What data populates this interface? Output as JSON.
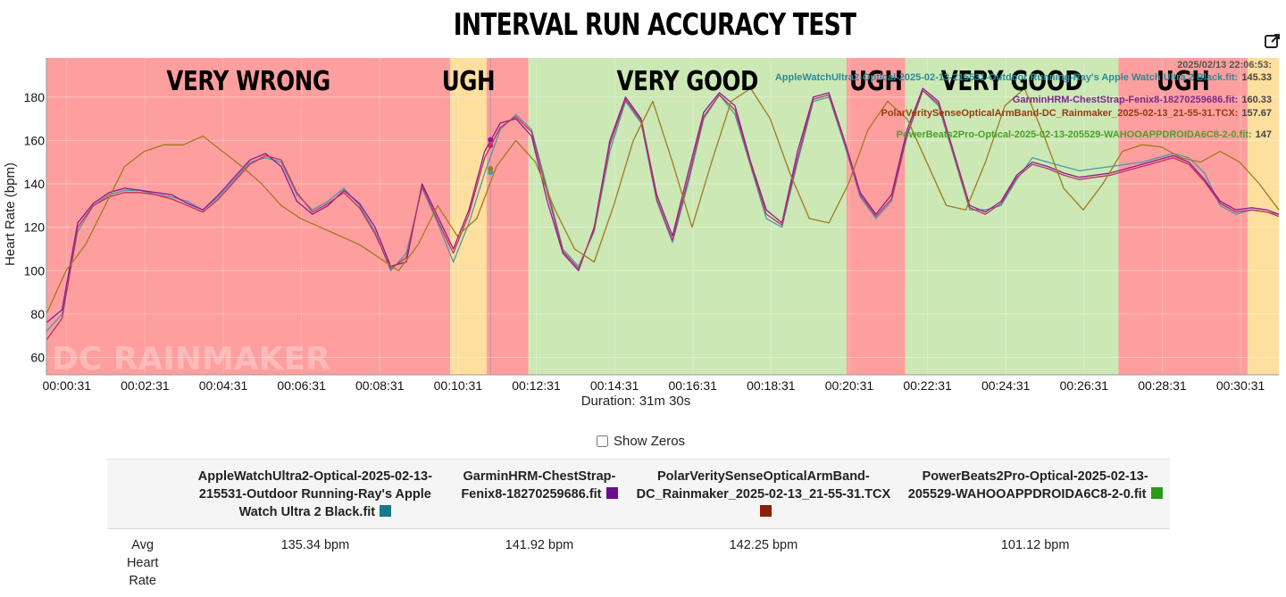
{
  "page": {
    "title": "INTERVAL RUN ACCURACY TEST",
    "show_zeros_label": "Show Zeros",
    "show_zeros_checked": false,
    "watermark": "DC RAINMAKER"
  },
  "tooltip": {
    "timestamp": "2025/02/13 22:06:53:",
    "rows": [
      {
        "text": "AppleWatchUltra2-Optical-2025-02-13-215531-Outdoor Running-Ray's Apple Watch Ultra 2 Black.fit:",
        "value": "145.33",
        "color": "#2a8a9a"
      },
      {
        "text": "GarminHRM-ChestStrap-Fenix8-18270259686.fit:",
        "value": "160.33",
        "color": "#7a2a8a"
      },
      {
        "text": "PolarVeritySenseOpticalArmBand-DC_Rainmaker_2025-02-13_21-55-31.TCX:",
        "value": "157.67",
        "color": "#9a3a10"
      },
      {
        "text": "PowerBeats2Pro-Optical-2025-02-13-205529-WAHOOAPPDROIDA6C8-2-0.fit:",
        "value": "147",
        "color": "#4aa02a"
      }
    ]
  },
  "table": {
    "row_label": "Avg Heart Rate",
    "columns": [
      {
        "name": "AppleWatchUltra2-Optical-2025-02-13-215531-Outdoor Running-Ray's Apple Watch Ultra 2 Black.fit",
        "color": "#137a8c",
        "avg": "135.34 bpm"
      },
      {
        "name": "GarminHRM-ChestStrap-Fenix8-18270259686.fit",
        "color": "#6b0d8c",
        "avg": "141.92 bpm"
      },
      {
        "name": "PolarVeritySenseOpticalArmBand-DC_Rainmaker_2025-02-13_21-55-31.TCX",
        "color": "#8a1f0a",
        "avg": "142.25 bpm"
      },
      {
        "name": "PowerBeats2Pro-Optical-2025-02-13-205529-WAHOOAPPDROIDA6C8-2-0.fit",
        "color": "#2a9a1a",
        "avg": "101.12 bpm"
      }
    ]
  },
  "chart_data": {
    "type": "line",
    "title": "INTERVAL RUN ACCURACY TEST",
    "xlabel": "Duration: 31m 30s",
    "ylabel": "Heart Rate (bpm)",
    "x_unit": "minutes",
    "xlim": [
      0,
      31.5
    ],
    "ylim": [
      52,
      198
    ],
    "x_ticks": [
      "00:00:31",
      "00:02:31",
      "00:04:31",
      "00:06:31",
      "00:08:31",
      "00:10:31",
      "00:12:31",
      "00:14:31",
      "00:16:31",
      "00:18:31",
      "00:20:31",
      "00:22:31",
      "00:24:31",
      "00:26:31",
      "00:28:31",
      "00:30:31"
    ],
    "x_tick_values": [
      0.52,
      2.52,
      4.52,
      6.52,
      8.52,
      10.52,
      12.52,
      14.52,
      16.52,
      18.52,
      20.52,
      22.52,
      24.52,
      26.52,
      28.52,
      30.52
    ],
    "y_ticks": [
      60,
      80,
      100,
      120,
      140,
      160,
      180
    ],
    "grid": true,
    "zones": [
      {
        "label": "VERY WRONG",
        "start": 0.0,
        "end": 10.32,
        "color": "#ff9e9e"
      },
      {
        "label": "UGH",
        "start": 10.32,
        "end": 11.25,
        "color": "#ffdf9e"
      },
      {
        "label": "",
        "start": 11.25,
        "end": 12.32,
        "color": "#ff9e9e"
      },
      {
        "label": "VERY GOOD",
        "start": 12.32,
        "end": 20.45,
        "color": "#cce8b5"
      },
      {
        "label": "UGH",
        "start": 20.45,
        "end": 21.95,
        "color": "#ff9e9e"
      },
      {
        "label": "VERY GOOD",
        "start": 21.95,
        "end": 27.4,
        "color": "#cce8b5"
      },
      {
        "label": "UGH",
        "start": 27.4,
        "end": 30.7,
        "color": "#ff9e9e"
      },
      {
        "label": "",
        "start": 30.7,
        "end": 31.5,
        "color": "#ffdf9e"
      }
    ],
    "crosshair_x": 11.35,
    "series": [
      {
        "name": "AppleWatchUltra2-Optical-2025-02-13-215531-Outdoor Running-Ray's Apple Watch Ultra 2 Black.fit",
        "color": "#4a9aa5",
        "x": [
          0,
          0.4,
          0.8,
          1.2,
          1.6,
          2.0,
          2.4,
          2.8,
          3.2,
          3.6,
          4.0,
          4.4,
          4.8,
          5.2,
          5.6,
          6.0,
          6.4,
          6.8,
          7.2,
          7.6,
          8.0,
          8.4,
          8.8,
          9.2,
          9.6,
          10.0,
          10.4,
          10.8,
          11.2,
          11.6,
          12.0,
          12.4,
          12.8,
          13.2,
          13.6,
          14.0,
          14.4,
          14.8,
          15.2,
          15.6,
          16.0,
          16.4,
          16.8,
          17.2,
          17.6,
          18.0,
          18.4,
          18.8,
          19.2,
          19.6,
          20.0,
          20.4,
          20.8,
          21.2,
          21.6,
          22.0,
          22.4,
          22.8,
          23.2,
          23.6,
          24.0,
          24.4,
          24.8,
          25.2,
          25.6,
          26.0,
          26.4,
          26.8,
          27.2,
          27.6,
          28.0,
          28.4,
          28.8,
          29.2,
          29.6,
          30.0,
          30.4,
          30.8,
          31.2,
          31.5
        ],
        "y": [
          72,
          80,
          118,
          130,
          135,
          137,
          137,
          135,
          134,
          132,
          128,
          134,
          142,
          150,
          152,
          150,
          135,
          128,
          132,
          138,
          130,
          118,
          100,
          108,
          138,
          122,
          104,
          122,
          145,
          165,
          172,
          165,
          138,
          110,
          102,
          118,
          155,
          178,
          168,
          132,
          113,
          140,
          170,
          181,
          172,
          148,
          124,
          120,
          150,
          178,
          180,
          158,
          134,
          124,
          132,
          162,
          183,
          176,
          152,
          128,
          128,
          130,
          142,
          152,
          150,
          148,
          146,
          147,
          148,
          149,
          150,
          152,
          154,
          152,
          145,
          130,
          126,
          128,
          127,
          126
        ]
      },
      {
        "name": "GarminHRM-ChestStrap-Fenix8-18270259686.fit",
        "color": "#8a1a9a",
        "x": [
          0,
          0.4,
          0.8,
          1.2,
          1.6,
          2.0,
          2.4,
          2.8,
          3.2,
          3.6,
          4.0,
          4.4,
          4.8,
          5.2,
          5.6,
          6.0,
          6.4,
          6.8,
          7.2,
          7.6,
          8.0,
          8.4,
          8.8,
          9.2,
          9.6,
          10.0,
          10.4,
          10.8,
          11.2,
          11.6,
          12.0,
          12.4,
          12.8,
          13.2,
          13.6,
          14.0,
          14.4,
          14.8,
          15.2,
          15.6,
          16.0,
          16.4,
          16.8,
          17.2,
          17.6,
          18.0,
          18.4,
          18.8,
          19.2,
          19.6,
          20.0,
          20.4,
          20.8,
          21.2,
          21.6,
          22.0,
          22.4,
          22.8,
          23.2,
          23.6,
          24.0,
          24.4,
          24.8,
          25.2,
          25.6,
          26.0,
          26.4,
          26.8,
          27.2,
          27.6,
          28.0,
          28.4,
          28.8,
          29.2,
          29.6,
          30.0,
          30.4,
          30.8,
          31.2,
          31.5
        ],
        "y": [
          76,
          82,
          122,
          131,
          136,
          138,
          137,
          136,
          135,
          131,
          128,
          135,
          143,
          151,
          154,
          148,
          132,
          126,
          130,
          137,
          131,
          120,
          102,
          104,
          140,
          125,
          110,
          128,
          155,
          168,
          170,
          162,
          132,
          108,
          100,
          120,
          160,
          180,
          170,
          135,
          116,
          145,
          173,
          182,
          176,
          150,
          128,
          122,
          155,
          180,
          182,
          160,
          136,
          126,
          135,
          165,
          184,
          178,
          154,
          130,
          127,
          132,
          144,
          150,
          148,
          145,
          143,
          144,
          145,
          147,
          149,
          151,
          153,
          150,
          142,
          132,
          128,
          129,
          128,
          126
        ]
      },
      {
        "name": "PolarVeritySenseOpticalArmBand-DC_Rainmaker_2025-02-13_21-55-31.TCX",
        "color": "#c0305a",
        "x": [
          0,
          0.4,
          0.8,
          1.2,
          1.6,
          2.0,
          2.4,
          2.8,
          3.2,
          3.6,
          4.0,
          4.4,
          4.8,
          5.2,
          5.6,
          6.0,
          6.4,
          6.8,
          7.2,
          7.6,
          8.0,
          8.4,
          8.8,
          9.2,
          9.6,
          10.0,
          10.4,
          10.8,
          11.2,
          11.6,
          12.0,
          12.4,
          12.8,
          13.2,
          13.6,
          14.0,
          14.4,
          14.8,
          15.2,
          15.6,
          16.0,
          16.4,
          16.8,
          17.2,
          17.6,
          18.0,
          18.4,
          18.8,
          19.2,
          19.6,
          20.0,
          20.4,
          20.8,
          21.2,
          21.6,
          22.0,
          22.4,
          22.8,
          23.2,
          23.6,
          24.0,
          24.4,
          24.8,
          25.2,
          25.6,
          26.0,
          26.4,
          26.8,
          27.2,
          27.6,
          28.0,
          28.4,
          28.8,
          29.2,
          29.6,
          30.0,
          30.4,
          30.8,
          31.2,
          31.5
        ],
        "y": [
          68,
          78,
          120,
          130,
          134,
          136,
          136,
          135,
          133,
          130,
          127,
          133,
          141,
          149,
          153,
          151,
          136,
          127,
          131,
          136,
          129,
          117,
          101,
          106,
          139,
          123,
          108,
          126,
          152,
          166,
          171,
          164,
          136,
          109,
          101,
          119,
          158,
          179,
          169,
          133,
          114,
          142,
          171,
          181,
          174,
          149,
          126,
          121,
          152,
          179,
          181,
          159,
          135,
          125,
          133,
          163,
          183,
          177,
          153,
          129,
          126,
          131,
          143,
          149,
          147,
          144,
          142,
          143,
          144,
          146,
          148,
          150,
          152,
          149,
          141,
          131,
          127,
          128,
          127,
          125
        ]
      },
      {
        "name": "PowerBeats2Pro-Optical-2025-02-13-205529-WAHOOAPPDROIDA6C8-2-0.fit",
        "color": "#a07a20",
        "x": [
          0,
          0.5,
          1.0,
          1.5,
          2.0,
          2.5,
          3.0,
          3.5,
          4.0,
          4.5,
          5.0,
          5.5,
          6.0,
          6.5,
          7.0,
          7.5,
          8.0,
          8.5,
          9.0,
          9.5,
          10.0,
          10.5,
          11.0,
          11.5,
          12.0,
          12.5,
          13.0,
          13.5,
          14.0,
          14.5,
          15.0,
          15.5,
          16.0,
          16.5,
          17.0,
          17.5,
          18.0,
          18.5,
          19.0,
          19.5,
          20.0,
          20.5,
          21.0,
          21.5,
          22.0,
          22.5,
          23.0,
          23.5,
          24.0,
          24.5,
          25.0,
          25.5,
          26.0,
          26.5,
          27.0,
          27.5,
          28.0,
          28.5,
          29.0,
          29.5,
          30.0,
          30.5,
          31.0,
          31.5
        ],
        "y": [
          80,
          100,
          112,
          130,
          148,
          155,
          158,
          158,
          162,
          155,
          148,
          140,
          130,
          124,
          120,
          116,
          112,
          106,
          100,
          112,
          130,
          116,
          124,
          148,
          160,
          150,
          128,
          110,
          104,
          130,
          160,
          178,
          150,
          120,
          150,
          178,
          184,
          170,
          145,
          124,
          122,
          140,
          165,
          178,
          170,
          150,
          130,
          128,
          150,
          176,
          184,
          162,
          138,
          128,
          140,
          155,
          158,
          157,
          152,
          150,
          155,
          150,
          140,
          128
        ]
      }
    ]
  }
}
